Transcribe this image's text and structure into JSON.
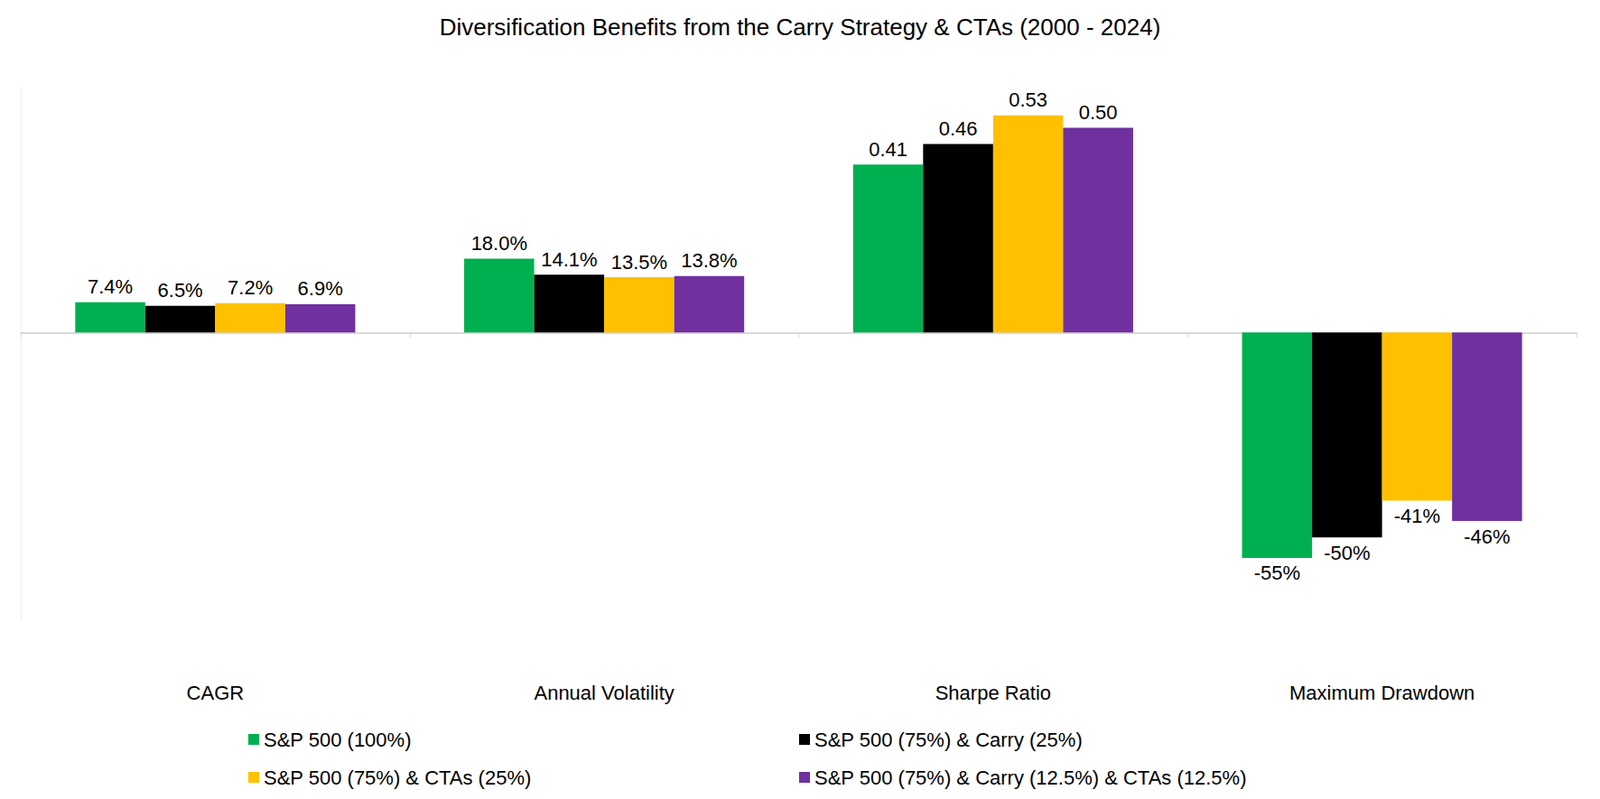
{
  "chart_data": {
    "type": "bar",
    "title": "Diversification Benefits from the Carry Strategy & CTAs (2000 - 2024)",
    "categories": [
      "CAGR",
      "Annual Volatility",
      "Sharpe Ratio",
      "Maximum Drawdown"
    ],
    "series": [
      {
        "name": "S&P 500 (100%)",
        "color": "#00b050",
        "values": [
          0.074,
          0.18,
          0.41,
          -0.55
        ],
        "value_labels": [
          "7.4%",
          "18.0%",
          "0.41",
          "-55%"
        ]
      },
      {
        "name": "S&P 500 (75%) & Carry (25%)",
        "color": "#000000",
        "values": [
          0.065,
          0.141,
          0.46,
          -0.5
        ],
        "value_labels": [
          "6.5%",
          "14.1%",
          "0.46",
          "-50%"
        ]
      },
      {
        "name": "S&P 500 (75%) & CTAs (25%)",
        "color": "#ffc000",
        "values": [
          0.072,
          0.135,
          0.53,
          -0.41
        ],
        "value_labels": [
          "7.2%",
          "13.5%",
          "0.53",
          "-41%"
        ]
      },
      {
        "name": "S&P 500 (75%) & Carry (12.5%) & CTAs (12.5%)",
        "color": "#7030a0",
        "values": [
          0.069,
          0.138,
          0.5,
          -0.46
        ],
        "value_labels": [
          "6.9%",
          "13.8%",
          "0.50",
          "-46%"
        ]
      }
    ],
    "ylim": [
      -0.7,
      0.6
    ],
    "grid": false,
    "legend": "bottom",
    "data_labels": true,
    "tick_labels": "x"
  }
}
